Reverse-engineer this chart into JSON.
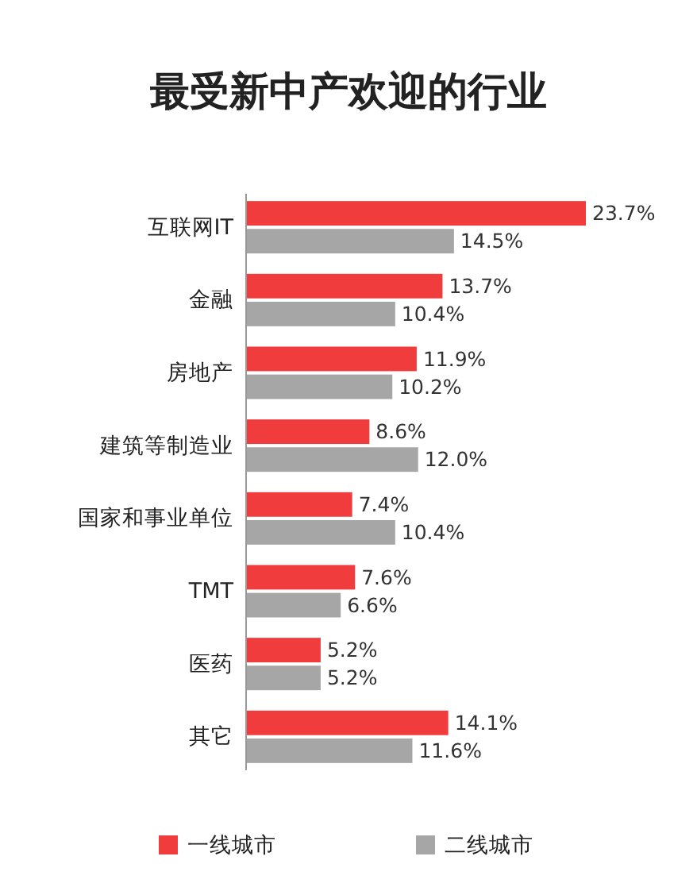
{
  "chart_data": {
    "type": "bar",
    "orientation": "horizontal",
    "title": "最受新中产欢迎的行业",
    "categories": [
      "互联网IT",
      "金融",
      "房地产",
      "建筑等制造业",
      "国家和事业单位",
      "TMT",
      "医药",
      "其它"
    ],
    "series": [
      {
        "name": "一线城市",
        "color": "#f03c3c",
        "values": [
          23.7,
          13.7,
          11.9,
          8.6,
          7.4,
          7.6,
          5.2,
          14.1
        ],
        "value_labels": [
          "23.7%",
          "13.7%",
          "11.9%",
          "8.6%",
          "7.4%",
          "7.6%",
          "5.2%",
          "14.1%"
        ]
      },
      {
        "name": "二线城市",
        "color": "#a6a6a6",
        "values": [
          14.5,
          10.4,
          10.2,
          12.0,
          10.4,
          6.6,
          5.2,
          11.6
        ],
        "value_labels": [
          "14.5%",
          "10.4%",
          "10.2%",
          "12.0%",
          "10.4%",
          "6.6%",
          "5.2%",
          "11.6%"
        ]
      }
    ],
    "legend": "bottom"
  }
}
